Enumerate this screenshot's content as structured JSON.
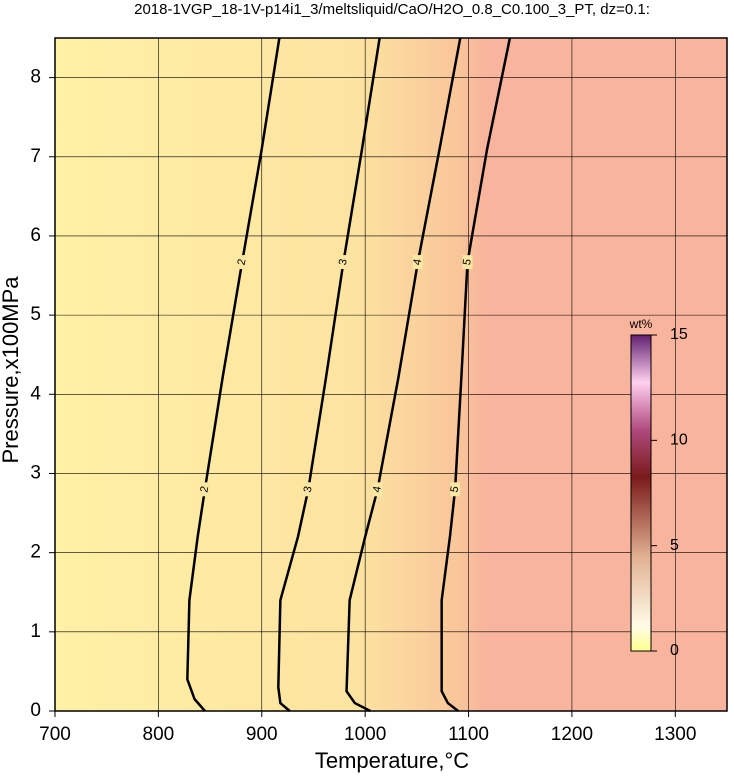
{
  "chart_data": {
    "type": "contour",
    "title": "2018-1VGP_18-1V-p14i1_3/meltsliquid/CaO/H2O_0.8_C0.100_3_PT, dz=0.1:",
    "x_label": "Temperature,°C",
    "y_label": "Pressure,x100MPa",
    "xlim": [
      700,
      1350
    ],
    "ylim": [
      0,
      8.5
    ],
    "xticks": [
      700,
      800,
      900,
      1000,
      1100,
      1200,
      1300
    ],
    "yticks": [
      0,
      1,
      2,
      3,
      4,
      5,
      6,
      7,
      8
    ],
    "grid": true,
    "series": [
      {
        "name": "2",
        "color": "#000000",
        "x": [
          845,
          835,
          828,
          830,
          838,
          845,
          862,
          881,
          900,
          917
        ],
        "y": [
          0,
          0.15,
          0.4,
          1.4,
          2.2,
          2.8,
          4.2,
          5.67,
          7.1,
          8.5
        ]
      },
      {
        "name": "3",
        "color": "#000000",
        "x": [
          927,
          918,
          916,
          918,
          935,
          945,
          962,
          979,
          997,
          1014
        ],
        "y": [
          0,
          0.1,
          0.3,
          1.4,
          2.2,
          2.8,
          4.2,
          5.67,
          7.1,
          8.5
        ]
      },
      {
        "name": "4",
        "color": "#000000",
        "x": [
          1005,
          990,
          982,
          985,
          1000,
          1012,
          1032,
          1051,
          1072,
          1092
        ],
        "y": [
          0,
          0.1,
          0.25,
          1.4,
          2.2,
          2.8,
          4.2,
          5.67,
          7.1,
          8.5
        ]
      },
      {
        "name": "5",
        "color": "#000000",
        "x": [
          1090,
          1080,
          1074,
          1074,
          1082,
          1087,
          1093,
          1099,
          1118,
          1140
        ],
        "y": [
          0,
          0.1,
          0.25,
          1.4,
          2.2,
          2.8,
          4.2,
          5.67,
          7.1,
          8.5
        ]
      }
    ],
    "colorbar": {
      "label": "wt%",
      "lim": [
        0,
        15
      ],
      "ticks": [
        0,
        5,
        10,
        15
      ]
    }
  }
}
